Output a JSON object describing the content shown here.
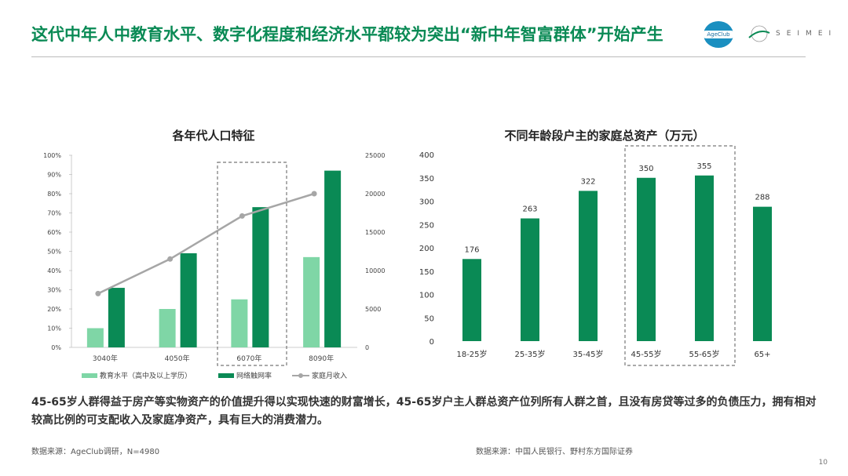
{
  "header": {
    "title": "这代中年人中教育水平、数字化程度和经济水平都较为突出“新中年智富群体”开始产生",
    "logo1": "AgeClub",
    "logo2": "SEIMEI"
  },
  "chart_data": [
    {
      "type": "bar+line",
      "title": "各年代人口特征",
      "categories": [
        "3040年",
        "4050年",
        "6070年",
        "8090年"
      ],
      "series": [
        {
          "name": "教育水平（高中及以上学历）",
          "type": "bar",
          "axis": "left",
          "color": "#7fd6a6",
          "values": [
            10,
            20,
            25,
            47
          ]
        },
        {
          "name": "网络触网率",
          "type": "bar",
          "axis": "left",
          "color": "#0a8a55",
          "values": [
            31,
            49,
            73,
            92
          ]
        },
        {
          "name": "家庭月收入",
          "type": "line",
          "axis": "right",
          "color": "#a6a6a6",
          "values": [
            7000,
            11500,
            17100,
            20000
          ]
        }
      ],
      "ylim": [
        0,
        100
      ],
      "yticks": [
        "0%",
        "10%",
        "20%",
        "30%",
        "40%",
        "50%",
        "60%",
        "70%",
        "80%",
        "90%",
        "100%"
      ],
      "y2lim": [
        0,
        25000
      ],
      "y2ticks": [
        "0",
        "5000",
        "10000",
        "15000",
        "20000",
        "25000"
      ],
      "highlight": "6070年",
      "legend": "bottom"
    },
    {
      "type": "bar",
      "title": "不同年龄段户主的家庭总资产（万元）",
      "categories": [
        "18-25岁",
        "25-35岁",
        "35-45岁",
        "45-55岁",
        "55-65岁",
        "65+"
      ],
      "values": [
        176,
        263,
        322,
        350,
        355,
        288
      ],
      "ylim": [
        0,
        400
      ],
      "yticks": [
        "0",
        "50",
        "100",
        "150",
        "200",
        "250",
        "300",
        "350",
        "400"
      ],
      "color": "#0a8a55",
      "highlight": [
        "45-55岁",
        "55-65岁"
      ]
    }
  ],
  "summary": "45-65岁人群得益于房产等实物资产的价值提升得以实现快速的财富增长，45-65岁户主人群总资产位列所有人群之首，且没有房贷等过多的负债压力，拥有相对较高比例的可支配收入及家庭净资产，具有巨大的消费潜力。",
  "source_left": "数据来源：AgeClub调研，N=4980",
  "source_right": "数据来源：中国人民银行、野村东方国际证券",
  "page_number": "10"
}
